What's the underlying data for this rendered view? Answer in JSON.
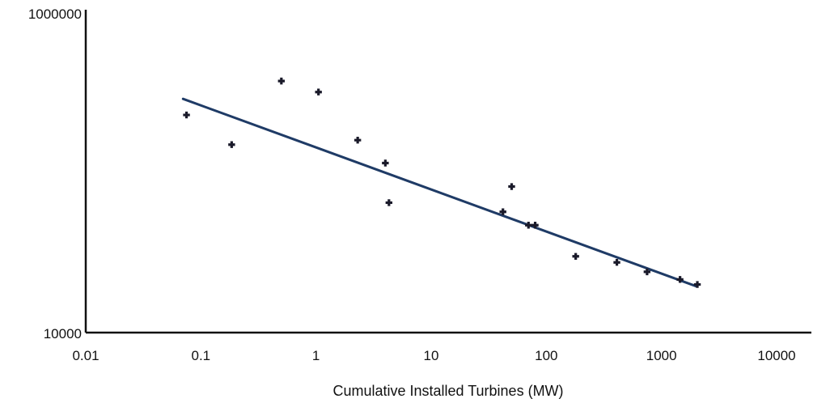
{
  "chart_data": {
    "type": "scatter",
    "title": "",
    "xlabel": "Cumulative Installed Turbines (MW)",
    "ylabel": "",
    "x_scale": "log",
    "y_scale": "log",
    "xlim": [
      0.01,
      10000
    ],
    "ylim": [
      10000,
      1000000
    ],
    "x_ticks": [
      "0.01",
      "0.1",
      "1",
      "10",
      "100",
      "1000",
      "10000"
    ],
    "y_ticks": [
      "10000",
      "1000000"
    ],
    "grid": false,
    "legend": "none",
    "colors": {
      "points": "#1a1a2a",
      "trend": "#1f3b66",
      "axis": "#111111"
    },
    "series": [
      {
        "kind": "points",
        "points": [
          {
            "x": 0.075,
            "y": 230000
          },
          {
            "x": 0.185,
            "y": 150000
          },
          {
            "x": 0.5,
            "y": 375000
          },
          {
            "x": 1.05,
            "y": 320000
          },
          {
            "x": 2.3,
            "y": 160000
          },
          {
            "x": 4.0,
            "y": 115000
          },
          {
            "x": 4.3,
            "y": 65000
          },
          {
            "x": 42,
            "y": 57000
          },
          {
            "x": 50,
            "y": 82000
          },
          {
            "x": 70,
            "y": 47000
          },
          {
            "x": 80,
            "y": 47000
          },
          {
            "x": 180,
            "y": 30000
          },
          {
            "x": 410,
            "y": 27500
          },
          {
            "x": 750,
            "y": 24000
          },
          {
            "x": 1450,
            "y": 21500
          },
          {
            "x": 2050,
            "y": 20000
          }
        ]
      },
      {
        "kind": "trendline",
        "points": [
          {
            "x": 0.07,
            "y": 290000
          },
          {
            "x": 2000,
            "y": 19500
          }
        ]
      }
    ]
  }
}
